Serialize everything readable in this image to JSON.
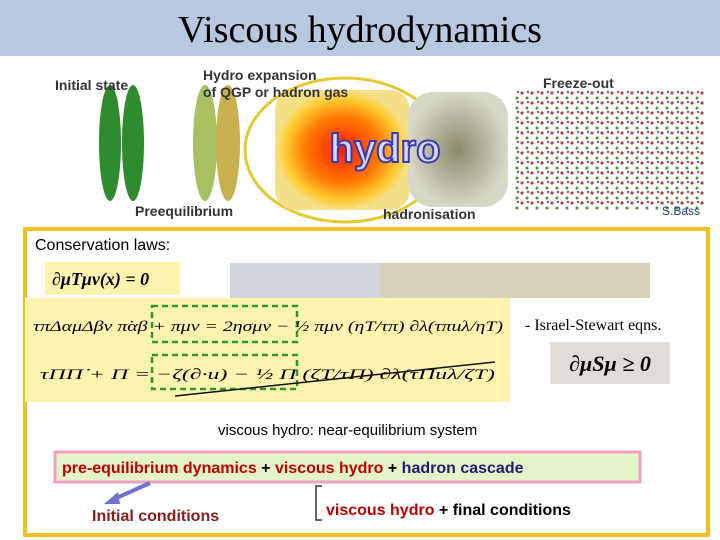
{
  "header": {
    "title": "Viscous hydrodynamics"
  },
  "diagram": {
    "labels": {
      "initial_state": "Initial state",
      "hydro_expansion_1": "Hydro expansion",
      "hydro_expansion_2": "of QGP or hadron gas",
      "freeze_out": "Freeze-out",
      "preequilibrium": "Preequilibrium",
      "hadronisation": "hadronisation",
      "hydro": "hydro"
    },
    "credit": "S.Bass"
  },
  "content": {
    "conservation_heading": "Conservation laws:",
    "conservation_eq": "∂μTμν(x) = 0",
    "shear_eq": "τπΔαμΔβν π̇αβ + πμν = 2ησμν − ½ πμν (ηT/τπ) ∂λ(τπuλ/ηT)",
    "bulk_eq": "τΠΠ̇ + Π = −ζ(∂·u) − ½ Π (ζT/τΠ) ∂λ(τΠuλ/ζT)",
    "israel_stewart": "- Israel-Stewart eqns.",
    "entropy_eq": "∂μSμ ≥ 0",
    "near_equilibrium": "viscous hydro:  near-equilibrium system",
    "pipeline": {
      "pre_equilibrium": "pre-equilibrium dynamics",
      "plus_1": " + ",
      "viscous_hydro": "viscous hydro",
      "plus_2": " + ",
      "hadron_cascade": "hadron cascade"
    },
    "initial_conditions": "Initial conditions",
    "bottom": {
      "viscous_hydro": "viscous hydro",
      "plus": " +  ",
      "final_conditions": "final conditions"
    }
  }
}
